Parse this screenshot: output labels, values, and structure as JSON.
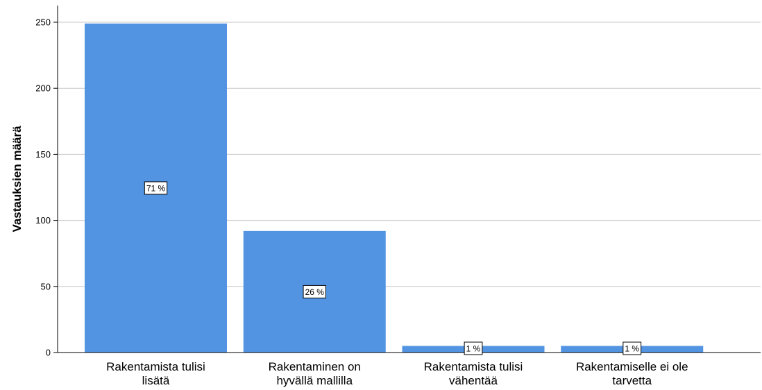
{
  "chart_data": {
    "type": "bar",
    "categories": [
      [
        "Rakentamista tulisi",
        "lisätä"
      ],
      [
        "Rakentaminen on",
        "hyvällä mallilla"
      ],
      [
        "Rakentamista tulisi",
        "vähentää"
      ],
      [
        "Rakentamiselle ei ole",
        "tarvetta"
      ]
    ],
    "values": [
      249,
      92,
      5,
      5
    ],
    "data_labels": [
      "71 %",
      "26 %",
      "1 %",
      "1 %"
    ],
    "ylabel": "Vastauksien määrä",
    "xlabel": "",
    "ylim": [
      0,
      260
    ],
    "yticks": [
      0,
      50,
      100,
      150,
      200,
      250
    ],
    "grid": true,
    "colors": {
      "bar": "#5294e2",
      "grid": "#c8c8c8",
      "axis": "#000000"
    }
  }
}
